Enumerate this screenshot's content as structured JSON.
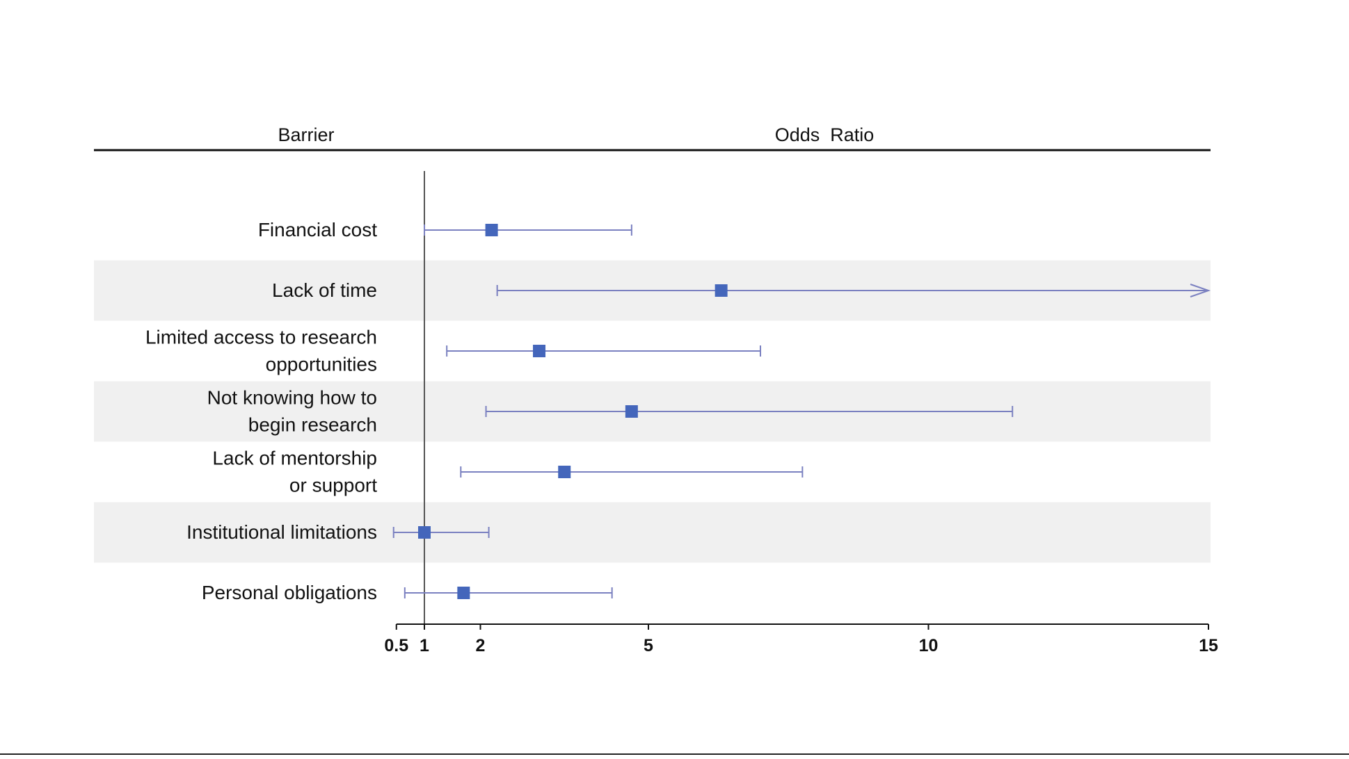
{
  "chart_data": {
    "type": "forest",
    "headers": {
      "label_column": "Barrier",
      "value_column": "Odds  Ratio"
    },
    "rows": [
      {
        "label": [
          "Financial cost"
        ],
        "or": 2.2,
        "ci_low": 1.0,
        "ci_high": 4.7,
        "shaded": false,
        "arrow": false
      },
      {
        "label": [
          "Lack of time"
        ],
        "or": 6.3,
        "ci_low": 2.3,
        "ci_high": 15,
        "shaded": true,
        "arrow": true
      },
      {
        "label": [
          "Limited access to research",
          "opportunities"
        ],
        "or": 3.05,
        "ci_low": 1.4,
        "ci_high": 7.0,
        "shaded": false,
        "arrow": false
      },
      {
        "label": [
          "Not knowing how to",
          "begin research"
        ],
        "or": 4.7,
        "ci_low": 2.1,
        "ci_high": 11.5,
        "shaded": true,
        "arrow": false
      },
      {
        "label": [
          "Lack of mentorship",
          "or support"
        ],
        "or": 3.5,
        "ci_low": 1.65,
        "ci_high": 7.75,
        "shaded": false,
        "arrow": false
      },
      {
        "label": [
          "Institutional limitations"
        ],
        "or": 1.0,
        "ci_low": 0.45,
        "ci_high": 2.15,
        "shaded": true,
        "arrow": false
      },
      {
        "label": [
          "Personal obligations"
        ],
        "or": 1.7,
        "ci_low": 0.65,
        "ci_high": 4.35,
        "shaded": false,
        "arrow": false
      }
    ],
    "x_ticks": [
      0.5,
      1,
      2,
      5,
      10,
      15
    ],
    "x_tick_labels": [
      "0.5",
      "1",
      "2",
      "5",
      "10",
      "15"
    ],
    "xlim": [
      0.5,
      15
    ],
    "reference_line": 1,
    "colors": {
      "marker": "#4466bb",
      "ci_line": "#7a80c0",
      "shade": "#f0f0f0",
      "axis": "#111111",
      "ref_line": "#555555"
    }
  }
}
